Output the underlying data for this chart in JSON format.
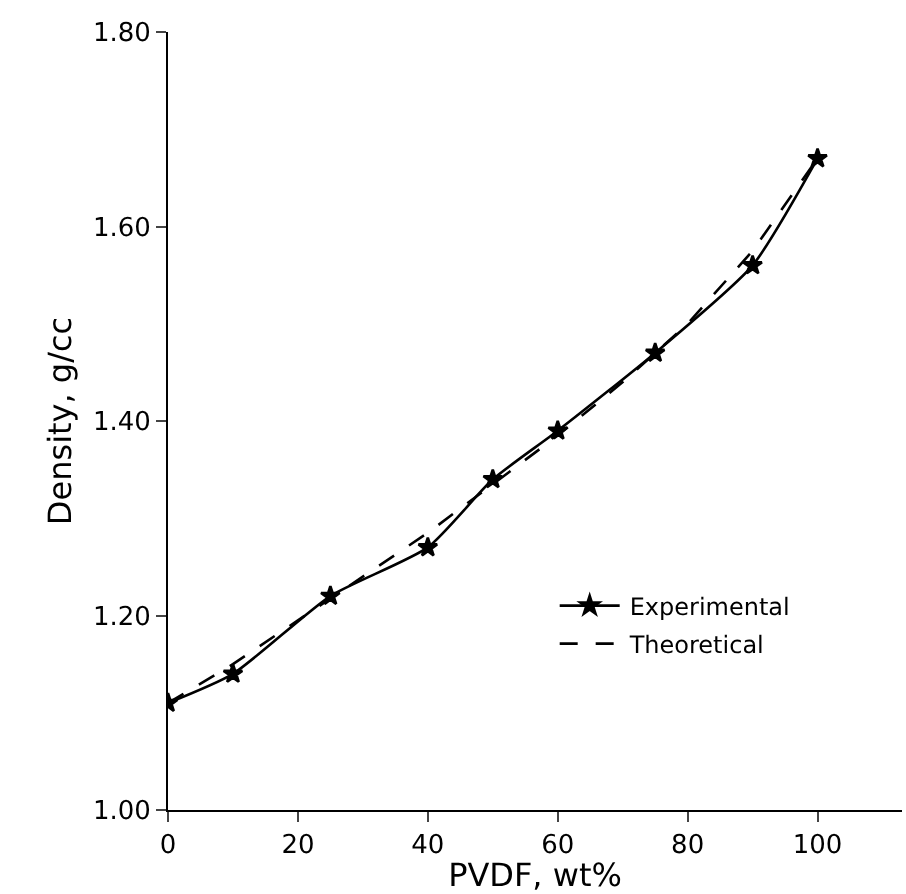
{
  "chart_data": {
    "type": "line",
    "xlabel": "PVDF, wt%",
    "ylabel": "Density, g/cc",
    "xlim": [
      0,
      113
    ],
    "xticks": [
      0,
      20,
      40,
      60,
      80,
      100
    ],
    "ylim": [
      1.0,
      1.8
    ],
    "yticks": [
      {
        "value": 1.0,
        "label": "1.00"
      },
      {
        "value": 1.2,
        "label": "1.20"
      },
      {
        "value": 1.4,
        "label": "1.40"
      },
      {
        "value": 1.6,
        "label": "1.60"
      },
      {
        "value": 1.8,
        "label": "1.80"
      }
    ],
    "legend": "bottom right",
    "series": [
      {
        "name": "Experimental",
        "color": "#000000",
        "marker": "star",
        "line_style": "solid",
        "x": [
          0,
          10,
          25,
          40,
          50,
          60,
          75,
          90,
          100
        ],
        "values": [
          1.11,
          1.14,
          1.22,
          1.27,
          1.34,
          1.39,
          1.47,
          1.56,
          1.67
        ]
      },
      {
        "name": "Theoretical",
        "color": "#000000",
        "marker": "none",
        "line_style": "dashed",
        "x": [
          0,
          10,
          20,
          30,
          40,
          50,
          60,
          70,
          80,
          90,
          100
        ],
        "values": [
          1.11,
          1.15,
          1.195,
          1.24,
          1.285,
          1.335,
          1.385,
          1.44,
          1.5,
          1.575,
          1.67
        ]
      }
    ]
  }
}
